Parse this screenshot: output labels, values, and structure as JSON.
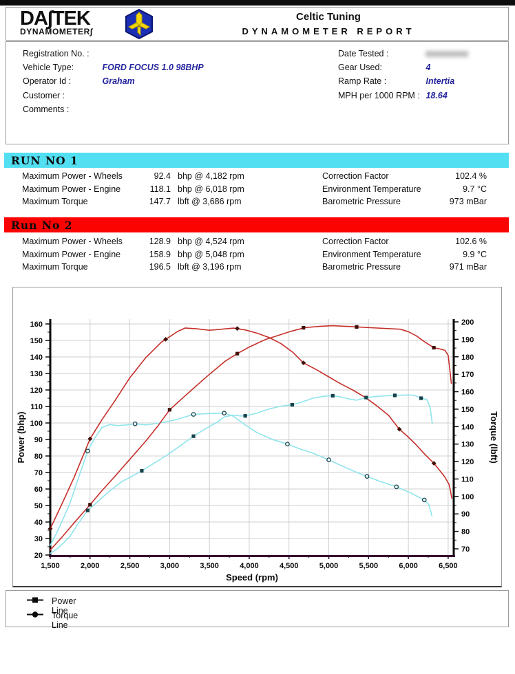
{
  "header": {
    "logo_line1": "DA∫TEK",
    "logo_line2": "DYNAMOMETER∫",
    "title": "Celtic Tuning",
    "subtitle": "DYNAMOMETER REPORT"
  },
  "info": {
    "left": [
      {
        "label": "Registration No. :",
        "value": ""
      },
      {
        "label": "Vehicle Type:",
        "value": "FORD FOCUS 1.0 98BHP"
      },
      {
        "label": "Operator Id :",
        "value": "Graham"
      },
      {
        "label": "Customer :",
        "value": ""
      },
      {
        "label": "Comments :",
        "value": ""
      }
    ],
    "right": [
      {
        "label": "Date Tested :",
        "value": "",
        "redacted": true
      },
      {
        "label": "Gear Used:",
        "value": "4"
      },
      {
        "label": "Ramp Rate :",
        "value": "Intertia"
      },
      {
        "label": "MPH per 1000 RPM :",
        "value": "18.64"
      }
    ]
  },
  "runs": [
    {
      "banner": "RUN NO 1",
      "banner_color": "#52dff2",
      "results": [
        {
          "label": "Maximum Power - Wheels",
          "value": "92.4",
          "unit": "bhp @ 4,182 rpm"
        },
        {
          "label": "Maximum Power - Engine",
          "value": "118.1",
          "unit": "bhp @ 6,018 rpm"
        },
        {
          "label": "Maximum Torque",
          "value": "147.7",
          "unit": "lbft @ 3,686 rpm"
        }
      ],
      "stats": [
        {
          "label": "Correction Factor",
          "value": "102.4 %"
        },
        {
          "label": "Environment Temperature",
          "value": "9.7 °C"
        },
        {
          "label": "Barometric Pressure",
          "value": "973 mBar"
        }
      ]
    },
    {
      "banner": "Run No 2",
      "banner_color": "#fb0300",
      "results": [
        {
          "label": "Maximum Power - Wheels",
          "value": "128.9",
          "unit": "bhp @ 4,524 rpm"
        },
        {
          "label": "Maximum Power - Engine",
          "value": "158.9",
          "unit": "bhp @ 5,048 rpm"
        },
        {
          "label": "Maximum Torque",
          "value": "196.5",
          "unit": "lbft @ 3,196 rpm"
        }
      ],
      "stats": [
        {
          "label": "Correction Factor",
          "value": "102.6 %"
        },
        {
          "label": "Environment Temperature",
          "value": "9.9 °C"
        },
        {
          "label": "Barometric Pressure",
          "value": "971 mBar"
        }
      ]
    }
  ],
  "chart_data": {
    "type": "line",
    "xlabel": "Speed (rpm)",
    "ylabel_left": "Power (bhp)",
    "ylabel_right": "Torque (lbft)",
    "xlim": [
      1500,
      6570
    ],
    "ylim_left": [
      20,
      160
    ],
    "ylim_right": [
      70,
      200
    ],
    "y_step": 10,
    "grid": true,
    "x_ticks": [
      1500,
      2000,
      2500,
      3000,
      3500,
      4000,
      4500,
      5000,
      5500,
      6000,
      6500
    ],
    "x_tick_labels": [
      "1,500",
      "2,000",
      "2,500",
      "3,000",
      "3,500",
      "4,000",
      "4,500",
      "5,000",
      "5,500",
      "6,000",
      "6,500"
    ],
    "colors": {
      "run1": "#8ee4ec",
      "run2": "#c62f2a",
      "marker_dark1": "#17414a",
      "marker_dark2": "#40100a",
      "axis_x": "#35032f",
      "grid": "#cfcfcf"
    },
    "series": [
      {
        "name": "Run 1 Power",
        "axis": "left",
        "units": "bhp",
        "color": "#8ee4ec",
        "marker": "square",
        "marker_color": "#17414a",
        "points": [
          [
            1500,
            21
          ],
          [
            1580,
            23.5
          ],
          [
            1660,
            27
          ],
          [
            1750,
            31.5
          ],
          [
            1850,
            39
          ],
          [
            1970,
            47
          ],
          [
            2100,
            52.5
          ],
          [
            2250,
            59
          ],
          [
            2400,
            64.5
          ],
          [
            2520,
            67.5
          ],
          [
            2650,
            71
          ],
          [
            2800,
            75.5
          ],
          [
            2950,
            80
          ],
          [
            3100,
            85
          ],
          [
            3300,
            92
          ],
          [
            3450,
            96.5
          ],
          [
            3600,
            100.5
          ],
          [
            3690,
            103.7
          ],
          [
            3800,
            104.8
          ],
          [
            3900,
            104.2
          ],
          [
            4000,
            104.8
          ],
          [
            4100,
            106
          ],
          [
            4250,
            108.5
          ],
          [
            4400,
            110.2
          ],
          [
            4540,
            111
          ],
          [
            4650,
            112.5
          ],
          [
            4800,
            115
          ],
          [
            4950,
            116.3
          ],
          [
            5050,
            116.5
          ],
          [
            5150,
            115.8
          ],
          [
            5250,
            114.6
          ],
          [
            5350,
            113.8
          ],
          [
            5470,
            115.4
          ],
          [
            5600,
            116.1
          ],
          [
            5720,
            116.5
          ],
          [
            5830,
            116.7
          ],
          [
            5950,
            116.9
          ],
          [
            6020,
            117
          ],
          [
            6100,
            116.3
          ],
          [
            6160,
            115
          ],
          [
            6230,
            114.3
          ],
          [
            6270,
            110
          ],
          [
            6290,
            104
          ],
          [
            6300,
            99.5
          ]
        ],
        "markers_at": [
          [
            1970,
            47
          ],
          [
            2650,
            71
          ],
          [
            3300,
            92
          ],
          [
            3950,
            104.3
          ],
          [
            4540,
            111
          ],
          [
            5050,
            116.5
          ],
          [
            5470,
            115.4
          ],
          [
            5830,
            116.7
          ],
          [
            6160,
            115
          ]
        ]
      },
      {
        "name": "Run 1 Torque",
        "axis": "right",
        "units": "lbft",
        "color": "#8ee4ec",
        "marker": "ring",
        "marker_color": "#17414a",
        "points": [
          [
            1500,
            72
          ],
          [
            1580,
            79
          ],
          [
            1660,
            87
          ],
          [
            1750,
            96.5
          ],
          [
            1850,
            110
          ],
          [
            1970,
            126
          ],
          [
            2060,
            133.5
          ],
          [
            2150,
            139.5
          ],
          [
            2250,
            141.2
          ],
          [
            2350,
            140.6
          ],
          [
            2460,
            141
          ],
          [
            2566,
            141.6
          ],
          [
            2700,
            141
          ],
          [
            2820,
            141.7
          ],
          [
            2950,
            142.7
          ],
          [
            3100,
            144.2
          ],
          [
            3300,
            147
          ],
          [
            3500,
            147.5
          ],
          [
            3686,
            147.7
          ],
          [
            3800,
            146
          ],
          [
            3950,
            141
          ],
          [
            4100,
            136.5
          ],
          [
            4300,
            132.5
          ],
          [
            4480,
            130
          ],
          [
            4650,
            127
          ],
          [
            4800,
            124.8
          ],
          [
            5000,
            121
          ],
          [
            5150,
            117.8
          ],
          [
            5350,
            113.8
          ],
          [
            5480,
            111.5
          ],
          [
            5650,
            108.5
          ],
          [
            5850,
            105.5
          ],
          [
            6030,
            102
          ],
          [
            6200,
            98
          ],
          [
            6255,
            95.5
          ],
          [
            6285,
            91
          ],
          [
            6295,
            89
          ]
        ],
        "markers_at": [
          [
            1970,
            126
          ],
          [
            2566,
            141.6
          ],
          [
            3300,
            147
          ],
          [
            3686,
            147.7
          ],
          [
            4480,
            130
          ],
          [
            5000,
            121
          ],
          [
            5480,
            111.5
          ],
          [
            5850,
            105.5
          ],
          [
            6200,
            98
          ]
        ]
      },
      {
        "name": "Run 2 Power",
        "axis": "left",
        "units": "bhp",
        "color": "#c62f2a",
        "marker": "square",
        "marker_color": "#40100a",
        "points": [
          [
            1500,
            23
          ],
          [
            1650,
            31
          ],
          [
            1800,
            39.5
          ],
          [
            2000,
            50.5
          ],
          [
            2150,
            59
          ],
          [
            2300,
            67
          ],
          [
            2500,
            78
          ],
          [
            2700,
            89
          ],
          [
            2850,
            98
          ],
          [
            3000,
            108
          ],
          [
            3150,
            114.5
          ],
          [
            3300,
            121
          ],
          [
            3500,
            129.5
          ],
          [
            3700,
            137.5
          ],
          [
            3850,
            142
          ],
          [
            4000,
            146
          ],
          [
            4200,
            150.5
          ],
          [
            4350,
            152.8
          ],
          [
            4524,
            155.5
          ],
          [
            4700,
            157.8
          ],
          [
            4900,
            158.6
          ],
          [
            5048,
            158.9
          ],
          [
            5200,
            158.6
          ],
          [
            5350,
            158.2
          ],
          [
            5500,
            157.8
          ],
          [
            5700,
            157.3
          ],
          [
            5900,
            156.8
          ],
          [
            6000,
            155.3
          ],
          [
            6100,
            152.8
          ],
          [
            6200,
            149.3
          ],
          [
            6320,
            145.6
          ],
          [
            6400,
            144.8
          ],
          [
            6460,
            144
          ],
          [
            6500,
            141
          ],
          [
            6520,
            133
          ],
          [
            6540,
            124
          ]
        ],
        "markers_at": [
          [
            2000,
            50.5
          ],
          [
            3000,
            108
          ],
          [
            3850,
            142
          ],
          [
            4682,
            157.7
          ],
          [
            5350,
            158.2
          ],
          [
            6320,
            145.6
          ]
        ]
      },
      {
        "name": "Run 2 Torque",
        "axis": "right",
        "units": "lbft",
        "color": "#c62f2a",
        "marker": "diamond",
        "marker_color": "#40100a",
        "points": [
          [
            1500,
            81.5
          ],
          [
            1650,
            96
          ],
          [
            1800,
            111
          ],
          [
            2000,
            133
          ],
          [
            2150,
            144
          ],
          [
            2300,
            154
          ],
          [
            2500,
            168
          ],
          [
            2700,
            179.5
          ],
          [
            2900,
            188.5
          ],
          [
            3100,
            194.5
          ],
          [
            3196,
            196.5
          ],
          [
            3350,
            196
          ],
          [
            3500,
            195.2
          ],
          [
            3650,
            195.8
          ],
          [
            3800,
            196.4
          ],
          [
            3950,
            195.4
          ],
          [
            4100,
            193.5
          ],
          [
            4250,
            191
          ],
          [
            4400,
            187.5
          ],
          [
            4550,
            182.5
          ],
          [
            4682,
            176.5
          ],
          [
            4850,
            172.5
          ],
          [
            5000,
            168.5
          ],
          [
            5150,
            164.5
          ],
          [
            5300,
            161
          ],
          [
            5450,
            157
          ],
          [
            5600,
            152
          ],
          [
            5750,
            146.5
          ],
          [
            5887,
            138.5
          ],
          [
            6000,
            134
          ],
          [
            6100,
            129.5
          ],
          [
            6210,
            124
          ],
          [
            6321,
            119
          ],
          [
            6400,
            114.5
          ],
          [
            6460,
            111
          ],
          [
            6510,
            107
          ],
          [
            6530,
            103
          ],
          [
            6545,
            99
          ]
        ],
        "markers_at": [
          [
            1500,
            81.5
          ],
          [
            2000,
            133
          ],
          [
            2950,
            190
          ],
          [
            3850,
            196.2
          ],
          [
            4682,
            176.5
          ],
          [
            5887,
            138.5
          ],
          [
            6321,
            119
          ]
        ]
      }
    ]
  },
  "legend": {
    "items": [
      {
        "marker": "square",
        "label": "Power Line"
      },
      {
        "marker": "circle",
        "label": "Torque Line"
      }
    ]
  }
}
